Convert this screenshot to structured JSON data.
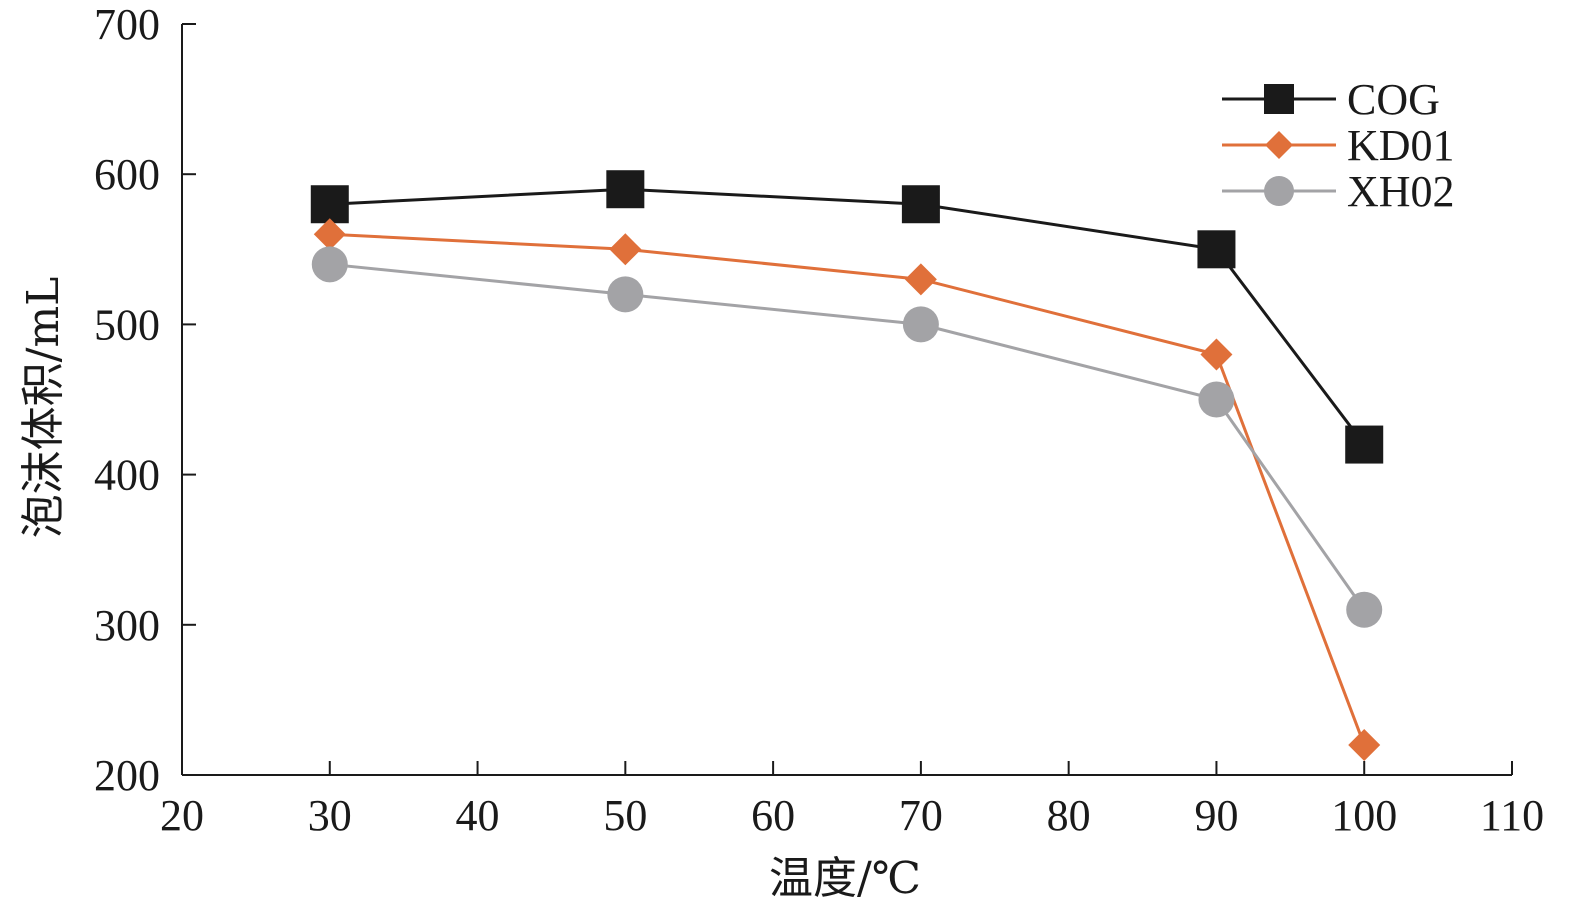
{
  "chart_data": {
    "type": "line",
    "title": "",
    "xlabel": "温度/℃",
    "ylabel": "泡沫体积/mL",
    "xlim": [
      20,
      110
    ],
    "ylim": [
      200,
      700
    ],
    "xticks": [
      20,
      30,
      40,
      50,
      60,
      70,
      80,
      90,
      100,
      110
    ],
    "yticks": [
      200,
      300,
      400,
      500,
      600,
      700
    ],
    "grid": false,
    "legend_position": "top-right",
    "x": [
      30,
      50,
      70,
      90,
      100
    ],
    "series": [
      {
        "name": "COG",
        "values": [
          580,
          590,
          580,
          550,
          420
        ],
        "color": "#1a1a1a",
        "marker": "square"
      },
      {
        "name": "KD01",
        "values": [
          560,
          550,
          530,
          480,
          220
        ],
        "color": "#e0703a",
        "marker": "diamond"
      },
      {
        "name": "XH02",
        "values": [
          540,
          520,
          500,
          450,
          310
        ],
        "color": "#a3a3a6",
        "marker": "circle"
      }
    ]
  }
}
